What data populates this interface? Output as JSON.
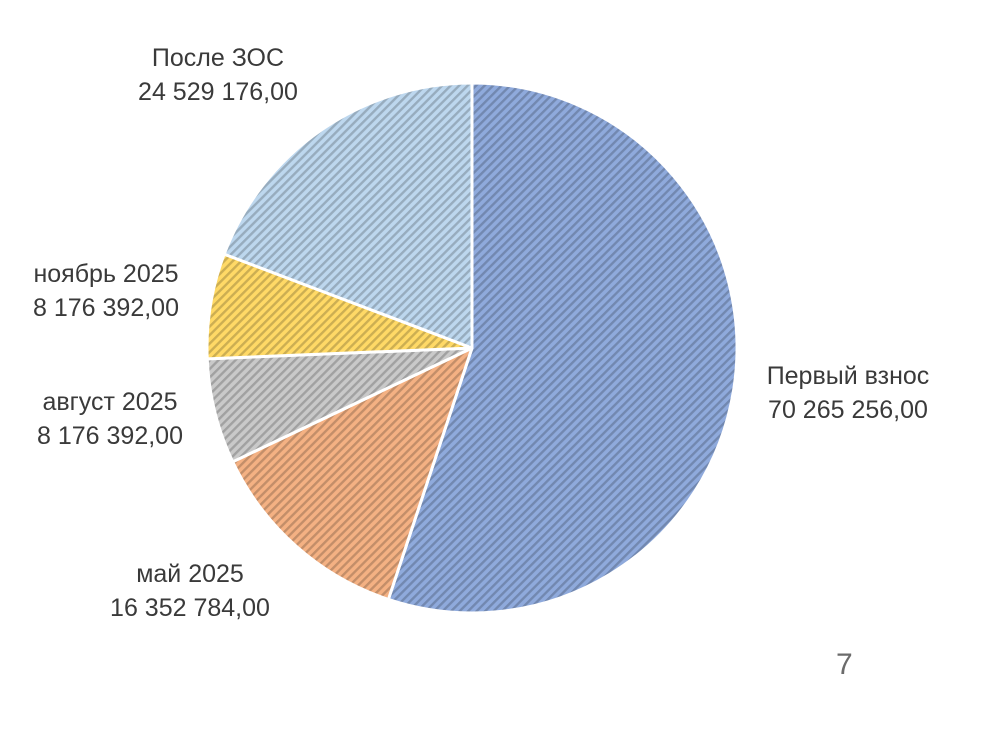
{
  "chart_data": {
    "type": "pie",
    "title": "",
    "start_angle_deg": 0,
    "direction": "clockwise",
    "slices": [
      {
        "label": "Первый взнос",
        "value_text": "70 265 256,00",
        "value": 70265256.0,
        "color": "#8faadc"
      },
      {
        "label": "май 2025",
        "value_text": "16 352 784,00",
        "value": 16352784.0,
        "color": "#f4b183"
      },
      {
        "label": "август 2025",
        "value_text": "8 176 392,00",
        "value": 8176392.0,
        "color": "#c9c9c9"
      },
      {
        "label": "ноябрь 2025",
        "value_text": "8 176 392,00",
        "value": 8176392.0,
        "color": "#ffd966"
      },
      {
        "label": "После ЗОС",
        "value_text": "24 529 176,00",
        "value": 24529176.0,
        "color": "#bdd7ee"
      }
    ],
    "legend": "none",
    "pattern": "diagonal-stripes"
  },
  "page": {
    "number": "7"
  }
}
